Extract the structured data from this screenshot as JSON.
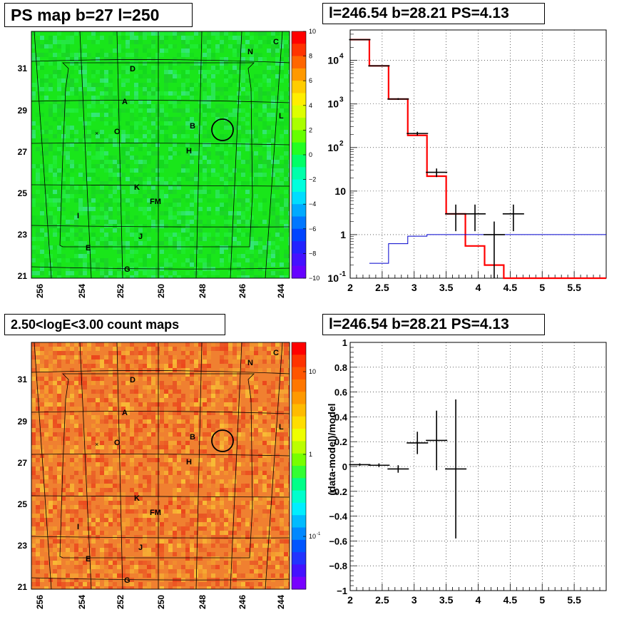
{
  "titles": {
    "map_ps": "PS map b=27 l=250",
    "spectrum": "l=246.54 b=28.21 PS=4.13",
    "count_map": "2.50<logE<3.00 count maps",
    "residual": "l=246.54 b=28.21 PS=4.13"
  },
  "chart_data": [
    {
      "id": "ps-map",
      "type": "heatmap",
      "title": "PS map b=27 l=250",
      "x_ticks": [
        "256",
        "254",
        "252",
        "250",
        "248",
        "246",
        "244"
      ],
      "y_ticks": [
        "31",
        "29",
        "27",
        "25",
        "23",
        "21"
      ],
      "colorbar_ticks": [
        "10",
        "8",
        "6",
        "4",
        "2",
        "0",
        "−2",
        "−4",
        "−6",
        "−8",
        "−10"
      ],
      "colorbar_range": [
        -10,
        10
      ],
      "colors": {
        "background": "#19e61a",
        "speckle": [
          "#23f046",
          "#1ccc2e",
          "#3ae68c",
          "#12d420"
        ]
      },
      "markers": [
        {
          "label": "C"
        },
        {
          "label": "N"
        },
        {
          "label": "D"
        },
        {
          "label": "A"
        },
        {
          "label": "L"
        },
        {
          "label": "B"
        },
        {
          "label": "O"
        },
        {
          "label": "H"
        },
        {
          "label": "K"
        },
        {
          "label": "FM"
        },
        {
          "label": "I"
        },
        {
          "label": "J"
        },
        {
          "label": "E"
        },
        {
          "label": "G"
        }
      ],
      "circle": {
        "l": 246.54,
        "b": 28.21
      }
    },
    {
      "id": "spectrum",
      "type": "line",
      "title": "l=246.54 b=28.21 PS=4.13",
      "xlim": [
        2,
        6
      ],
      "ylim": [
        0.1,
        50000
      ],
      "yscale": "log",
      "x_ticks": [
        "2",
        "2.5",
        "3",
        "3.5",
        "4",
        "4.5",
        "5",
        "5.5"
      ],
      "y_ticks": [
        "10^-1",
        "1",
        "10",
        "10^2",
        "10^3",
        "10^4"
      ],
      "grid": true,
      "series": [
        {
          "type": "step",
          "color": "#ff0000",
          "edges": [
            2.0,
            2.3,
            2.6,
            2.9,
            3.2,
            3.5,
            3.8,
            4.1,
            4.4,
            6.0
          ],
          "values": [
            30000,
            7500,
            1300,
            190,
            22,
            3,
            0.55,
            0.2,
            0.1
          ]
        },
        {
          "type": "step",
          "color": "#0000cc",
          "edges": [
            2.3,
            2.6,
            2.9,
            3.2,
            3.5,
            3.8,
            6.0
          ],
          "values": [
            0.22,
            0.62,
            0.92,
            1.0,
            1.0,
            1.0
          ]
        },
        {
          "type": "errorbar",
          "color": "#000000",
          "points": [
            {
              "x": 2.15,
              "y": 30000,
              "ylo": 29600,
              "yhi": 30400
            },
            {
              "x": 2.45,
              "y": 7500,
              "ylo": 7350,
              "yhi": 7650
            },
            {
              "x": 2.75,
              "y": 1300,
              "ylo": 1240,
              "yhi": 1360
            },
            {
              "x": 3.05,
              "y": 210,
              "ylo": 190,
              "yhi": 230
            },
            {
              "x": 3.35,
              "y": 27,
              "ylo": 21,
              "yhi": 33
            },
            {
              "x": 3.65,
              "y": 3,
              "ylo": 1.2,
              "yhi": 4.9
            },
            {
              "x": 3.95,
              "y": 3,
              "ylo": 1.2,
              "yhi": 4.9
            },
            {
              "x": 4.25,
              "y": 1,
              "ylo": 0.1,
              "yhi": 2.0
            },
            {
              "x": 4.55,
              "y": 3,
              "ylo": 1.2,
              "yhi": 4.9
            }
          ]
        }
      ]
    },
    {
      "id": "count-map",
      "type": "heatmap",
      "title": "2.50<logE<3.00 count maps",
      "x_ticks": [
        "256",
        "254",
        "252",
        "250",
        "248",
        "246",
        "244"
      ],
      "y_ticks": [
        "31",
        "29",
        "27",
        "25",
        "23",
        "21"
      ],
      "colorbar_ticks": [
        "10",
        "1",
        "10^-1"
      ],
      "colorbar_scale": "log",
      "colors": {
        "background": "#f08030",
        "speckle": [
          "#e64a22",
          "#f4a02c",
          "#fac836",
          "#ea3c1a"
        ]
      },
      "markers": [
        {
          "label": "C"
        },
        {
          "label": "N"
        },
        {
          "label": "D"
        },
        {
          "label": "A"
        },
        {
          "label": "L"
        },
        {
          "label": "B"
        },
        {
          "label": "O"
        },
        {
          "label": "H"
        },
        {
          "label": "K"
        },
        {
          "label": "FM"
        },
        {
          "label": "I"
        },
        {
          "label": "J"
        },
        {
          "label": "E"
        },
        {
          "label": "G"
        }
      ],
      "circle": {
        "l": 246.54,
        "b": 28.21
      }
    },
    {
      "id": "residual",
      "type": "scatter",
      "title": "l=246.54 b=28.21 PS=4.13",
      "ylabel": "(data-model)/model",
      "xlim": [
        2,
        6
      ],
      "ylim": [
        -1,
        1
      ],
      "x_ticks": [
        "2",
        "2.5",
        "3",
        "3.5",
        "4",
        "4.5",
        "5",
        "5.5"
      ],
      "y_ticks": [
        "1",
        "0.8",
        "0.6",
        "0.4",
        "0.2",
        "0",
        "−0.2",
        "−0.4",
        "−0.6",
        "−0.8",
        "−1"
      ],
      "grid": true,
      "points": [
        {
          "x": 2.15,
          "y": 0.015,
          "ylo": 0.005,
          "yhi": 0.025
        },
        {
          "x": 2.45,
          "y": 0.01,
          "ylo": -0.005,
          "yhi": 0.025
        },
        {
          "x": 2.75,
          "y": -0.02,
          "ylo": -0.05,
          "yhi": 0.01
        },
        {
          "x": 3.05,
          "y": 0.19,
          "ylo": 0.1,
          "yhi": 0.28
        },
        {
          "x": 3.35,
          "y": 0.21,
          "ylo": -0.03,
          "yhi": 0.45
        },
        {
          "x": 3.65,
          "y": -0.02,
          "ylo": -0.58,
          "yhi": 0.54
        }
      ]
    }
  ]
}
